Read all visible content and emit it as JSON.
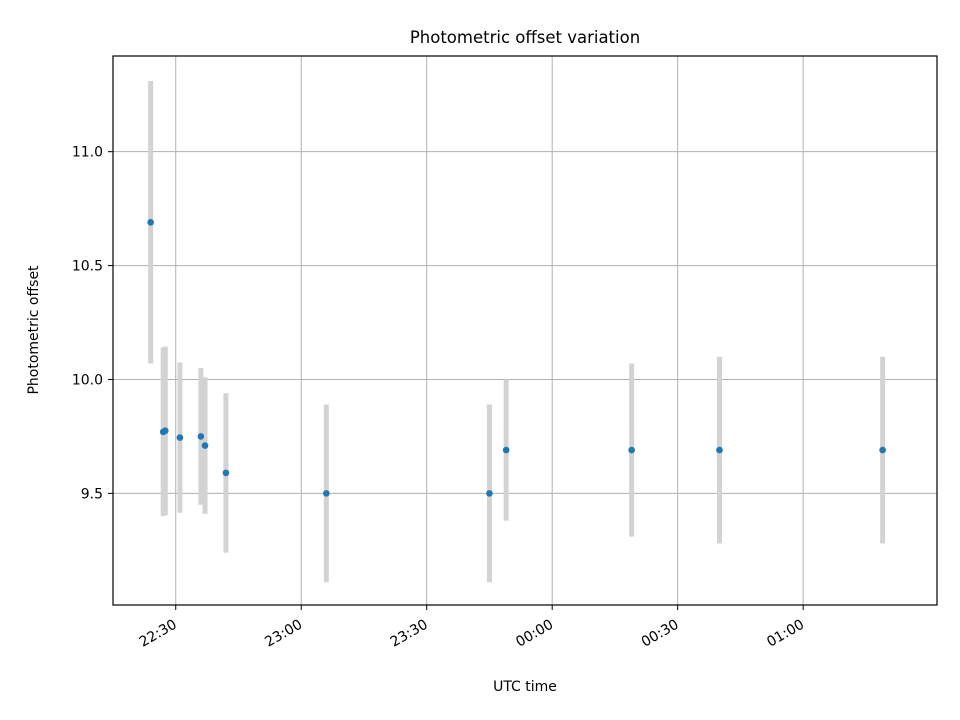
{
  "chart_data": {
    "type": "scatter",
    "title": "Photometric offset variation",
    "xlabel": "UTC time",
    "ylabel": "Photometric offset",
    "grid": true,
    "x_axis": {
      "kind": "time",
      "range": [
        "22:15",
        "01:32"
      ],
      "ticks": [
        "22:30",
        "23:00",
        "23:30",
        "00:00",
        "00:30",
        "01:00"
      ]
    },
    "y_axis": {
      "range": [
        9.01,
        11.42
      ],
      "ticks": [
        "9.5",
        "10.0",
        "10.5",
        "11.0"
      ]
    },
    "series": [
      {
        "color": "#1f77b4",
        "errorbar_color": "#d3d3d3",
        "points": [
          {
            "x": "22:24",
            "y": 10.69,
            "err": 0.62
          },
          {
            "x": "22:27",
            "y": 9.77,
            "err": 0.37
          },
          {
            "x": "22:27.5",
            "y": 9.775,
            "err": 0.37
          },
          {
            "x": "22:31",
            "y": 9.745,
            "err": 0.33
          },
          {
            "x": "22:36",
            "y": 9.75,
            "err": 0.3
          },
          {
            "x": "22:37",
            "y": 9.71,
            "err": 0.3
          },
          {
            "x": "22:42",
            "y": 9.59,
            "err": 0.35
          },
          {
            "x": "23:06",
            "y": 9.5,
            "err": 0.39
          },
          {
            "x": "23:45",
            "y": 9.5,
            "err": 0.39
          },
          {
            "x": "23:49",
            "y": 9.69,
            "err": 0.31
          },
          {
            "x": "00:19",
            "y": 9.69,
            "err": 0.38
          },
          {
            "x": "00:40",
            "y": 9.69,
            "err": 0.41
          },
          {
            "x": "01:19",
            "y": 9.69,
            "err": 0.41
          }
        ]
      }
    ]
  }
}
